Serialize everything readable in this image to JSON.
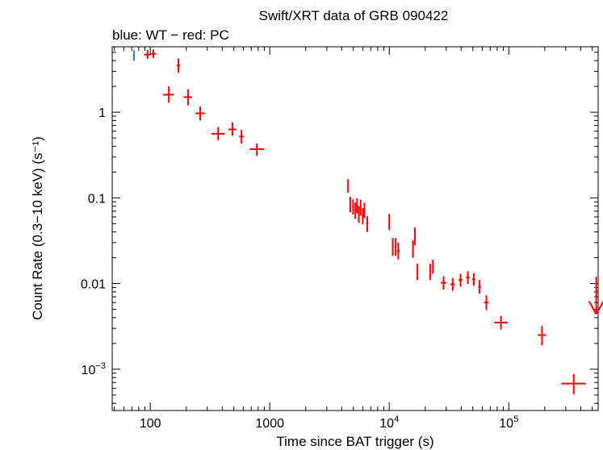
{
  "chart_data": {
    "type": "scatter",
    "title": "Swift/XRT data of GRB 090422",
    "subtitle": "blue: WT − red: PC",
    "xlabel": "Time since BAT trigger (s)",
    "ylabel": "Count Rate (0.3−10 keV) (s⁻¹)",
    "x_scale": "log",
    "y_scale": "log",
    "xlim": [
      48,
      560000
    ],
    "ylim": [
      0.00033,
      5.8
    ],
    "x_ticks": [
      {
        "value": 100,
        "label": "100"
      },
      {
        "value": 1000,
        "label": "1000"
      },
      {
        "value": 10000,
        "label": "10",
        "sup": "4"
      },
      {
        "value": 100000,
        "label": "10",
        "sup": "5"
      }
    ],
    "y_ticks": [
      {
        "value": 1,
        "label": "1"
      },
      {
        "value": 0.1,
        "label": "0.1"
      },
      {
        "value": 0.01,
        "label": "0.01"
      },
      {
        "value": 0.001,
        "label": "10",
        "sup": "−3"
      }
    ],
    "grid": false,
    "series": [
      {
        "color": "#1e78ff",
        "points": [
          {
            "x": 73,
            "xlo": 71.5,
            "xhi": 74.5,
            "y": 4.6,
            "ylo": 4.0,
            "yhi": 5.3
          }
        ]
      },
      {
        "color": "#ff0000",
        "points": [
          {
            "x": 95,
            "xlo": 89,
            "xhi": 101,
            "y": 4.7,
            "ylo": 4.2,
            "yhi": 5.3
          },
          {
            "x": 106,
            "xlo": 101,
            "xhi": 112,
            "y": 4.8,
            "ylo": 4.3,
            "yhi": 5.4
          },
          {
            "x": 172,
            "xlo": 166,
            "xhi": 178,
            "y": 3.5,
            "ylo": 2.9,
            "yhi": 4.2
          },
          {
            "x": 143,
            "xlo": 128,
            "xhi": 158,
            "y": 1.6,
            "ylo": 1.3,
            "yhi": 2.0
          },
          {
            "x": 207,
            "xlo": 190,
            "xhi": 224,
            "y": 1.5,
            "ylo": 1.2,
            "yhi": 1.85
          },
          {
            "x": 262,
            "xlo": 240,
            "xhi": 286,
            "y": 0.97,
            "ylo": 0.8,
            "yhi": 1.17
          },
          {
            "x": 370,
            "xlo": 325,
            "xhi": 420,
            "y": 0.56,
            "ylo": 0.47,
            "yhi": 0.67
          },
          {
            "x": 487,
            "xlo": 450,
            "xhi": 525,
            "y": 0.63,
            "ylo": 0.53,
            "yhi": 0.76
          },
          {
            "x": 580,
            "xlo": 555,
            "xhi": 605,
            "y": 0.52,
            "ylo": 0.43,
            "yhi": 0.62
          },
          {
            "x": 780,
            "xlo": 680,
            "xhi": 900,
            "y": 0.37,
            "ylo": 0.31,
            "yhi": 0.43
          },
          {
            "x": 4520,
            "xlo": 4460,
            "xhi": 4580,
            "y": 0.14,
            "ylo": 0.115,
            "yhi": 0.165
          },
          {
            "x": 4720,
            "xlo": 4650,
            "xhi": 4790,
            "y": 0.085,
            "ylo": 0.068,
            "yhi": 0.103
          },
          {
            "x": 4980,
            "xlo": 4900,
            "xhi": 5060,
            "y": 0.08,
            "ylo": 0.064,
            "yhi": 0.096
          },
          {
            "x": 5200,
            "xlo": 5120,
            "xhi": 5280,
            "y": 0.072,
            "ylo": 0.057,
            "yhi": 0.088
          },
          {
            "x": 5380,
            "xlo": 5300,
            "xhi": 5460,
            "y": 0.082,
            "ylo": 0.066,
            "yhi": 0.099
          },
          {
            "x": 5560,
            "xlo": 5480,
            "xhi": 5640,
            "y": 0.065,
            "ylo": 0.051,
            "yhi": 0.08
          },
          {
            "x": 5760,
            "xlo": 5680,
            "xhi": 5840,
            "y": 0.078,
            "ylo": 0.062,
            "yhi": 0.095
          },
          {
            "x": 6000,
            "xlo": 5900,
            "xhi": 6100,
            "y": 0.062,
            "ylo": 0.049,
            "yhi": 0.076
          },
          {
            "x": 6200,
            "xlo": 6100,
            "xhi": 6300,
            "y": 0.072,
            "ylo": 0.058,
            "yhi": 0.088
          },
          {
            "x": 6550,
            "xlo": 6400,
            "xhi": 6700,
            "y": 0.05,
            "ylo": 0.04,
            "yhi": 0.061
          },
          {
            "x": 10000,
            "xlo": 9850,
            "xhi": 10150,
            "y": 0.053,
            "ylo": 0.042,
            "yhi": 0.065
          },
          {
            "x": 10700,
            "xlo": 10550,
            "xhi": 10850,
            "y": 0.027,
            "ylo": 0.021,
            "yhi": 0.034
          },
          {
            "x": 11300,
            "xlo": 11100,
            "xhi": 11500,
            "y": 0.027,
            "ylo": 0.021,
            "yhi": 0.034
          },
          {
            "x": 11900,
            "xlo": 11600,
            "xhi": 12200,
            "y": 0.024,
            "ylo": 0.019,
            "yhi": 0.03
          },
          {
            "x": 15800,
            "xlo": 15600,
            "xhi": 16000,
            "y": 0.026,
            "ylo": 0.02,
            "yhi": 0.032
          },
          {
            "x": 16400,
            "xlo": 16200,
            "xhi": 16600,
            "y": 0.036,
            "ylo": 0.028,
            "yhi": 0.045
          },
          {
            "x": 17200,
            "xlo": 16900,
            "xhi": 17500,
            "y": 0.014,
            "ylo": 0.011,
            "yhi": 0.017
          },
          {
            "x": 22000,
            "xlo": 21700,
            "xhi": 22300,
            "y": 0.014,
            "ylo": 0.011,
            "yhi": 0.017
          },
          {
            "x": 23200,
            "xlo": 22800,
            "xhi": 23600,
            "y": 0.016,
            "ylo": 0.013,
            "yhi": 0.019
          },
          {
            "x": 28500,
            "xlo": 27000,
            "xhi": 30000,
            "y": 0.0102,
            "ylo": 0.0085,
            "yhi": 0.0121
          },
          {
            "x": 34000,
            "xlo": 32500,
            "xhi": 35500,
            "y": 0.0098,
            "ylo": 0.0082,
            "yhi": 0.0116
          },
          {
            "x": 39500,
            "xlo": 38000,
            "xhi": 41000,
            "y": 0.011,
            "ylo": 0.0092,
            "yhi": 0.013
          },
          {
            "x": 45500,
            "xlo": 44000,
            "xhi": 47000,
            "y": 0.0118,
            "ylo": 0.0099,
            "yhi": 0.0139
          },
          {
            "x": 51000,
            "xlo": 49500,
            "xhi": 52500,
            "y": 0.0112,
            "ylo": 0.0094,
            "yhi": 0.0132
          },
          {
            "x": 57000,
            "xlo": 55500,
            "xhi": 58500,
            "y": 0.0092,
            "ylo": 0.0076,
            "yhi": 0.011
          },
          {
            "x": 65000,
            "xlo": 62000,
            "xhi": 68000,
            "y": 0.006,
            "ylo": 0.0049,
            "yhi": 0.0073
          },
          {
            "x": 86000,
            "xlo": 76000,
            "xhi": 98000,
            "y": 0.0035,
            "ylo": 0.0029,
            "yhi": 0.0042
          },
          {
            "x": 190000,
            "xlo": 175000,
            "xhi": 206000,
            "y": 0.0025,
            "ylo": 0.0019,
            "yhi": 0.0032
          },
          {
            "x": 350000,
            "xlo": 275000,
            "xhi": 440000,
            "y": 0.00068,
            "ylo": 0.00051,
            "yhi": 0.00088
          }
        ],
        "upper_limits": [
          {
            "x": 540000,
            "y": 0.012,
            "y_to": 0.0044
          }
        ]
      }
    ]
  }
}
